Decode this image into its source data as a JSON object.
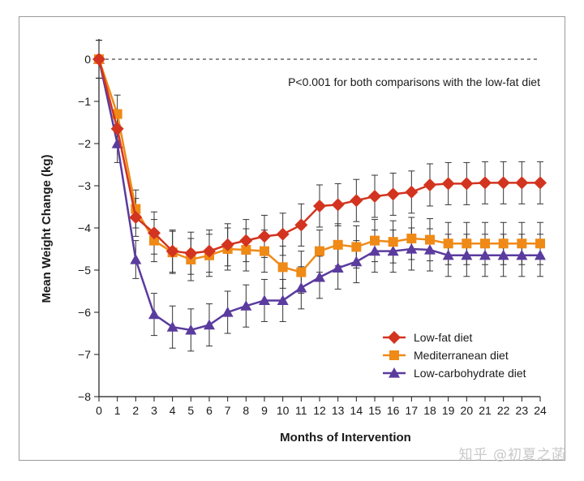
{
  "chart_data": {
    "type": "line",
    "xlabel": "Months of Intervention",
    "ylabel": "Mean Weight Change (kg)",
    "annotation": "P<0.001 for both comparisons with the low-fat diet",
    "xlim": [
      0,
      24
    ],
    "ylim": [
      -8,
      0
    ],
    "x_ticks": [
      "0",
      "1",
      "2",
      "3",
      "4",
      "5",
      "6",
      "7",
      "8",
      "9",
      "10",
      "11",
      "12",
      "13",
      "14",
      "15",
      "16",
      "17",
      "18",
      "19",
      "20",
      "21",
      "22",
      "23",
      "24"
    ],
    "y_ticks": [
      "0",
      "−1",
      "−2",
      "−3",
      "−4",
      "−5",
      "−6",
      "−7",
      "−8"
    ],
    "reference_line_y": 0,
    "legend_position": "bottom-right",
    "x": [
      0,
      1,
      2,
      3,
      4,
      5,
      6,
      7,
      8,
      9,
      10,
      11,
      12,
      13,
      14,
      15,
      16,
      17,
      18,
      19,
      20,
      21,
      22,
      23,
      24
    ],
    "series": [
      {
        "name": "Low-fat diet",
        "color": "#d2341f",
        "marker": "diamond",
        "values": [
          0,
          -1.65,
          -3.75,
          -4.12,
          -4.55,
          -4.6,
          -4.55,
          -4.4,
          -4.3,
          -4.2,
          -4.15,
          -3.93,
          -3.48,
          -3.45,
          -3.35,
          -3.25,
          -3.2,
          -3.15,
          -2.98,
          -2.95,
          -2.95,
          -2.93,
          -2.93,
          -2.93,
          -2.93
        ],
        "error": [
          0.45,
          0.45,
          0.45,
          0.5,
          0.5,
          0.5,
          0.5,
          0.5,
          0.5,
          0.5,
          0.5,
          0.5,
          0.5,
          0.5,
          0.5,
          0.5,
          0.5,
          0.5,
          0.5,
          0.5,
          0.5,
          0.5,
          0.5,
          0.5,
          0.5
        ]
      },
      {
        "name": "Mediterranean diet",
        "color": "#ef8a17",
        "marker": "square",
        "values": [
          0,
          -1.3,
          -3.55,
          -4.3,
          -4.58,
          -4.75,
          -4.65,
          -4.5,
          -4.52,
          -4.55,
          -4.93,
          -5.05,
          -4.55,
          -4.4,
          -4.45,
          -4.3,
          -4.33,
          -4.25,
          -4.28,
          -4.37,
          -4.37,
          -4.37,
          -4.37,
          -4.37,
          -4.37
        ],
        "error": [
          0.45,
          0.45,
          0.45,
          0.5,
          0.5,
          0.5,
          0.5,
          0.5,
          0.5,
          0.5,
          0.5,
          0.5,
          0.5,
          0.5,
          0.5,
          0.5,
          0.5,
          0.5,
          0.5,
          0.5,
          0.5,
          0.5,
          0.5,
          0.5,
          0.5
        ]
      },
      {
        "name": "Low-carbohydrate diet",
        "color": "#5a3b9e",
        "marker": "triangle",
        "values": [
          0,
          -2.0,
          -4.75,
          -6.05,
          -6.35,
          -6.42,
          -6.3,
          -6.0,
          -5.85,
          -5.72,
          -5.72,
          -5.42,
          -5.17,
          -4.95,
          -4.8,
          -4.55,
          -4.55,
          -4.5,
          -4.52,
          -4.65,
          -4.65,
          -4.65,
          -4.65,
          -4.65,
          -4.65
        ],
        "error": [
          0.45,
          0.45,
          0.45,
          0.5,
          0.5,
          0.5,
          0.5,
          0.5,
          0.5,
          0.5,
          0.5,
          0.5,
          0.5,
          0.5,
          0.5,
          0.5,
          0.5,
          0.5,
          0.5,
          0.5,
          0.5,
          0.5,
          0.5,
          0.5,
          0.5
        ]
      }
    ],
    "colors": {
      "axis": "#1a1a1a",
      "error_bar": "#333333",
      "frame": "#9a9a9a"
    }
  },
  "watermark": "知乎 @初夏之菡"
}
